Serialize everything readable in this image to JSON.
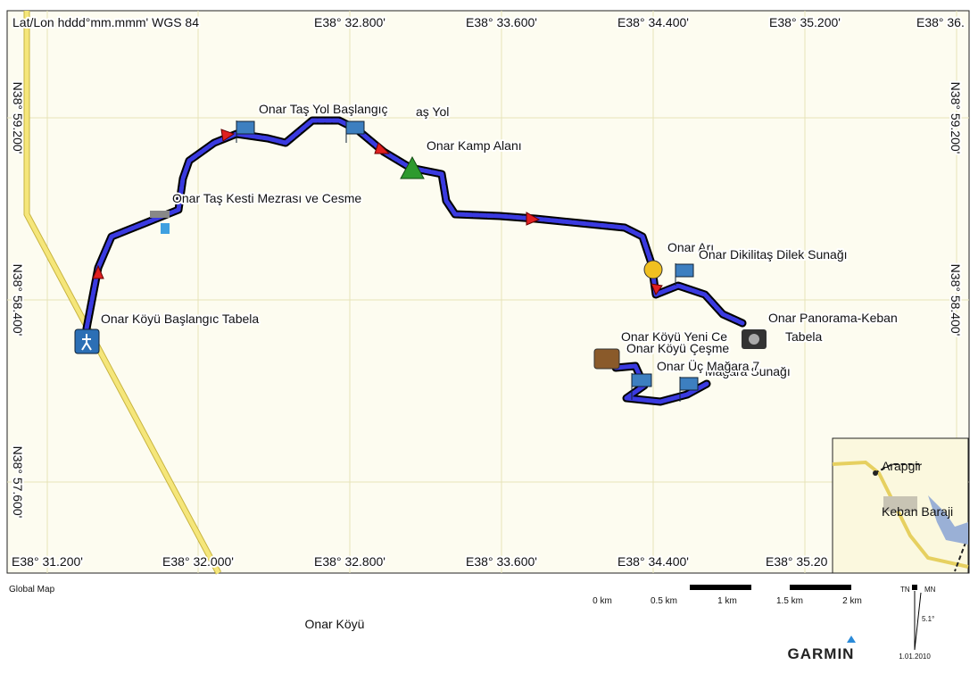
{
  "header": {
    "coordinate_format": "Lat/Lon hddd°mm.mmm' WGS 84"
  },
  "grid_labels": {
    "top": [
      "E38° 32.800'",
      "E38° 33.600'",
      "E38° 34.400'",
      "E38° 35.200'",
      "E38° 36."
    ],
    "bottom": [
      "E38° 31.200'",
      "E38° 32.000'",
      "E38° 32.800'",
      "E38° 33.600'",
      "E38° 34.400'",
      "E38° 35.20"
    ],
    "left": [
      "N38° 59.200'",
      "N38° 58.400'",
      "N38° 57.600'"
    ],
    "right": [
      "N38° 59.200'",
      "N38° 58.400'"
    ]
  },
  "waypoints": [
    {
      "label": "Onar Taş Yol Başlangıç"
    },
    {
      "label": "aş Yol"
    },
    {
      "label": "Onar Kamp Alanı"
    },
    {
      "label": "Onar Taş Kesti Mezrası ve Cesme"
    },
    {
      "label": "Onar Köyü Başlangıc Tabela"
    },
    {
      "label": "Onar Arı"
    },
    {
      "label": "Onar Dikilitaş Dilek Sunağı"
    },
    {
      "label": "Onar Panorama-Keban"
    },
    {
      "label": "Tabela"
    },
    {
      "label": "Onar Köyü Yeni Ce"
    },
    {
      "label": "Onar Köyü Çeşme"
    },
    {
      "label": "Onar Üç Mağara 7"
    },
    {
      "label": "Mağara Sunağı"
    }
  ],
  "inset_map": {
    "labels": [
      "Arapgir",
      "Keban Baraji"
    ]
  },
  "footer": {
    "map_source": "Global Map",
    "map_name": "Onar Köyü",
    "scale_labels": [
      "0 km",
      "0.5 km",
      "1 km",
      "1.5 km",
      "2 km"
    ],
    "north": {
      "tn": "TN",
      "mn": "MN",
      "declination": "5.1°",
      "date": "1.01.2010"
    },
    "logo": "GARMIN"
  }
}
